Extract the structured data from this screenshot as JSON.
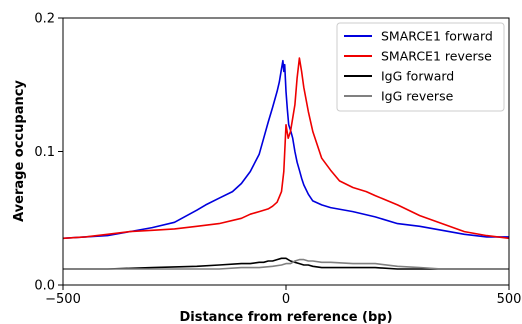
{
  "chart_data": {
    "type": "line",
    "title": "",
    "xlabel": "Distance from reference (bp)",
    "ylabel": "Average occupancy",
    "xlim": [
      -500,
      500
    ],
    "ylim": [
      0.0,
      0.2
    ],
    "xticks": [
      -500,
      0,
      500
    ],
    "xtick_labels": [
      "−500",
      "0",
      "500"
    ],
    "yticks": [
      0.0,
      0.1,
      0.2
    ],
    "ytick_labels": [
      "0.0",
      "0.1",
      "0.2"
    ],
    "grid": false,
    "legend_position": "top-right",
    "series": [
      {
        "name": "SMARCE1 forward",
        "color": "#0000dd",
        "x": [
          -500,
          -450,
          -400,
          -350,
          -300,
          -250,
          -200,
          -180,
          -150,
          -120,
          -100,
          -80,
          -60,
          -50,
          -40,
          -30,
          -20,
          -15,
          -10,
          -7,
          -5,
          -3,
          0,
          3,
          6,
          10,
          15,
          20,
          25,
          30,
          35,
          40,
          50,
          60,
          80,
          100,
          150,
          200,
          250,
          300,
          350,
          400,
          450,
          500
        ],
        "y": [
          0.035,
          0.036,
          0.037,
          0.04,
          0.043,
          0.047,
          0.056,
          0.06,
          0.065,
          0.07,
          0.076,
          0.085,
          0.098,
          0.11,
          0.122,
          0.133,
          0.145,
          0.152,
          0.162,
          0.168,
          0.16,
          0.165,
          0.145,
          0.132,
          0.12,
          0.116,
          0.11,
          0.1,
          0.092,
          0.086,
          0.08,
          0.075,
          0.068,
          0.063,
          0.06,
          0.058,
          0.055,
          0.051,
          0.046,
          0.044,
          0.041,
          0.038,
          0.036,
          0.036
        ]
      },
      {
        "name": "SMARCE1 reverse",
        "color": "#ee0000",
        "x": [
          -500,
          -450,
          -400,
          -350,
          -300,
          -250,
          -200,
          -150,
          -100,
          -80,
          -60,
          -40,
          -30,
          -20,
          -15,
          -10,
          -5,
          0,
          5,
          10,
          15,
          20,
          25,
          30,
          35,
          40,
          50,
          60,
          80,
          100,
          120,
          150,
          180,
          200,
          250,
          300,
          350,
          400,
          450,
          500
        ],
        "y": [
          0.035,
          0.036,
          0.038,
          0.04,
          0.041,
          0.042,
          0.044,
          0.046,
          0.05,
          0.053,
          0.055,
          0.057,
          0.059,
          0.062,
          0.066,
          0.07,
          0.085,
          0.12,
          0.11,
          0.115,
          0.125,
          0.135,
          0.155,
          0.17,
          0.16,
          0.148,
          0.13,
          0.115,
          0.095,
          0.086,
          0.078,
          0.073,
          0.07,
          0.067,
          0.06,
          0.052,
          0.046,
          0.04,
          0.037,
          0.035
        ]
      },
      {
        "name": "IgG forward",
        "color": "#000000",
        "x": [
          -500,
          -400,
          -300,
          -200,
          -150,
          -100,
          -80,
          -60,
          -50,
          -40,
          -30,
          -20,
          -10,
          0,
          10,
          20,
          30,
          40,
          50,
          60,
          80,
          100,
          150,
          200,
          250,
          300,
          350,
          400,
          450,
          500
        ],
        "y": [
          0.012,
          0.012,
          0.013,
          0.014,
          0.015,
          0.016,
          0.016,
          0.017,
          0.017,
          0.018,
          0.018,
          0.019,
          0.02,
          0.02,
          0.018,
          0.017,
          0.016,
          0.015,
          0.015,
          0.014,
          0.013,
          0.013,
          0.013,
          0.013,
          0.012,
          0.012,
          0.012,
          0.012,
          0.012,
          0.012
        ]
      },
      {
        "name": "IgG reverse",
        "color": "#808080",
        "x": [
          -500,
          -400,
          -300,
          -200,
          -150,
          -100,
          -60,
          -30,
          -10,
          0,
          10,
          20,
          30,
          40,
          50,
          60,
          80,
          100,
          150,
          200,
          250,
          300,
          350,
          400,
          450,
          500
        ],
        "y": [
          0.012,
          0.012,
          0.012,
          0.012,
          0.012,
          0.013,
          0.013,
          0.014,
          0.015,
          0.016,
          0.016,
          0.018,
          0.019,
          0.019,
          0.018,
          0.018,
          0.017,
          0.017,
          0.016,
          0.016,
          0.014,
          0.013,
          0.012,
          0.012,
          0.012,
          0.012
        ]
      }
    ]
  }
}
